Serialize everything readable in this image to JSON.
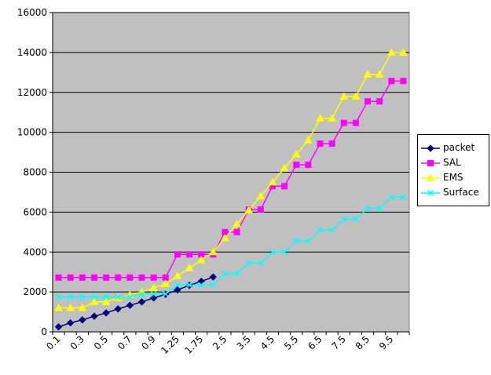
{
  "chart_data": {
    "type": "line",
    "x": [
      "0.1",
      "0.2",
      "0.3",
      "0.4",
      "0.5",
      "0.6",
      "0.7",
      "0.8",
      "0.9",
      "1",
      "1.25",
      "1.5",
      "1.75",
      "2",
      "2.5",
      "3",
      "3.5",
      "4",
      "4.5",
      "5",
      "5.5",
      "6",
      "6.5",
      "7",
      "7.5",
      "8",
      "8.5",
      "9",
      "9.5",
      "10"
    ],
    "x_tick_labels": [
      "0.1",
      "0.3",
      "0.5",
      "0.7",
      "0.9",
      "1.25",
      "1.75",
      "2.5",
      "3.5",
      "4.5",
      "5.5",
      "6.5",
      "7.5",
      "8.5",
      "9.5"
    ],
    "ylim": [
      0,
      16000
    ],
    "y_ticks": [
      0,
      2000,
      4000,
      6000,
      8000,
      10000,
      12000,
      14000,
      16000
    ],
    "grid": true,
    "legend_position": "right",
    "plot_background": "#c0c0c0",
    "series": [
      {
        "name": "packet",
        "color": "#000080",
        "marker": "diamond",
        "values": [
          250,
          450,
          600,
          780,
          950,
          1150,
          1330,
          1500,
          1700,
          1880,
          2100,
          2330,
          2530,
          2750,
          null,
          null,
          null,
          null,
          null,
          null,
          null,
          null,
          null,
          null,
          null,
          null,
          null,
          null,
          null,
          null
        ]
      },
      {
        "name": "SAL",
        "color": "#ff00ff",
        "marker": "square",
        "values": [
          2720,
          2720,
          2720,
          2720,
          2720,
          2720,
          2720,
          2720,
          2720,
          2720,
          3880,
          3880,
          3880,
          3880,
          5000,
          5000,
          6130,
          6130,
          7300,
          7300,
          8370,
          8370,
          9430,
          9430,
          10470,
          10470,
          11550,
          11550,
          12570,
          12570
        ]
      },
      {
        "name": "EMS",
        "color": "#ffff00",
        "marker": "triangle",
        "values": [
          1200,
          1200,
          1200,
          1500,
          1500,
          1700,
          1850,
          2000,
          2200,
          2400,
          2800,
          3200,
          3600,
          4000,
          4700,
          5400,
          6100,
          6800,
          7500,
          8200,
          8900,
          9600,
          10700,
          10700,
          11800,
          11800,
          12900,
          12900,
          14000,
          14000
        ]
      },
      {
        "name": "Surface",
        "color": "#00ffff",
        "marker": "x",
        "values": [
          1750,
          1750,
          1750,
          1750,
          1750,
          1750,
          1750,
          1900,
          1900,
          1900,
          2350,
          2350,
          2350,
          2350,
          2900,
          2900,
          3450,
          3450,
          4000,
          4000,
          4550,
          4550,
          5100,
          5100,
          5650,
          5650,
          6200,
          6200,
          6750,
          6750
        ]
      }
    ]
  }
}
